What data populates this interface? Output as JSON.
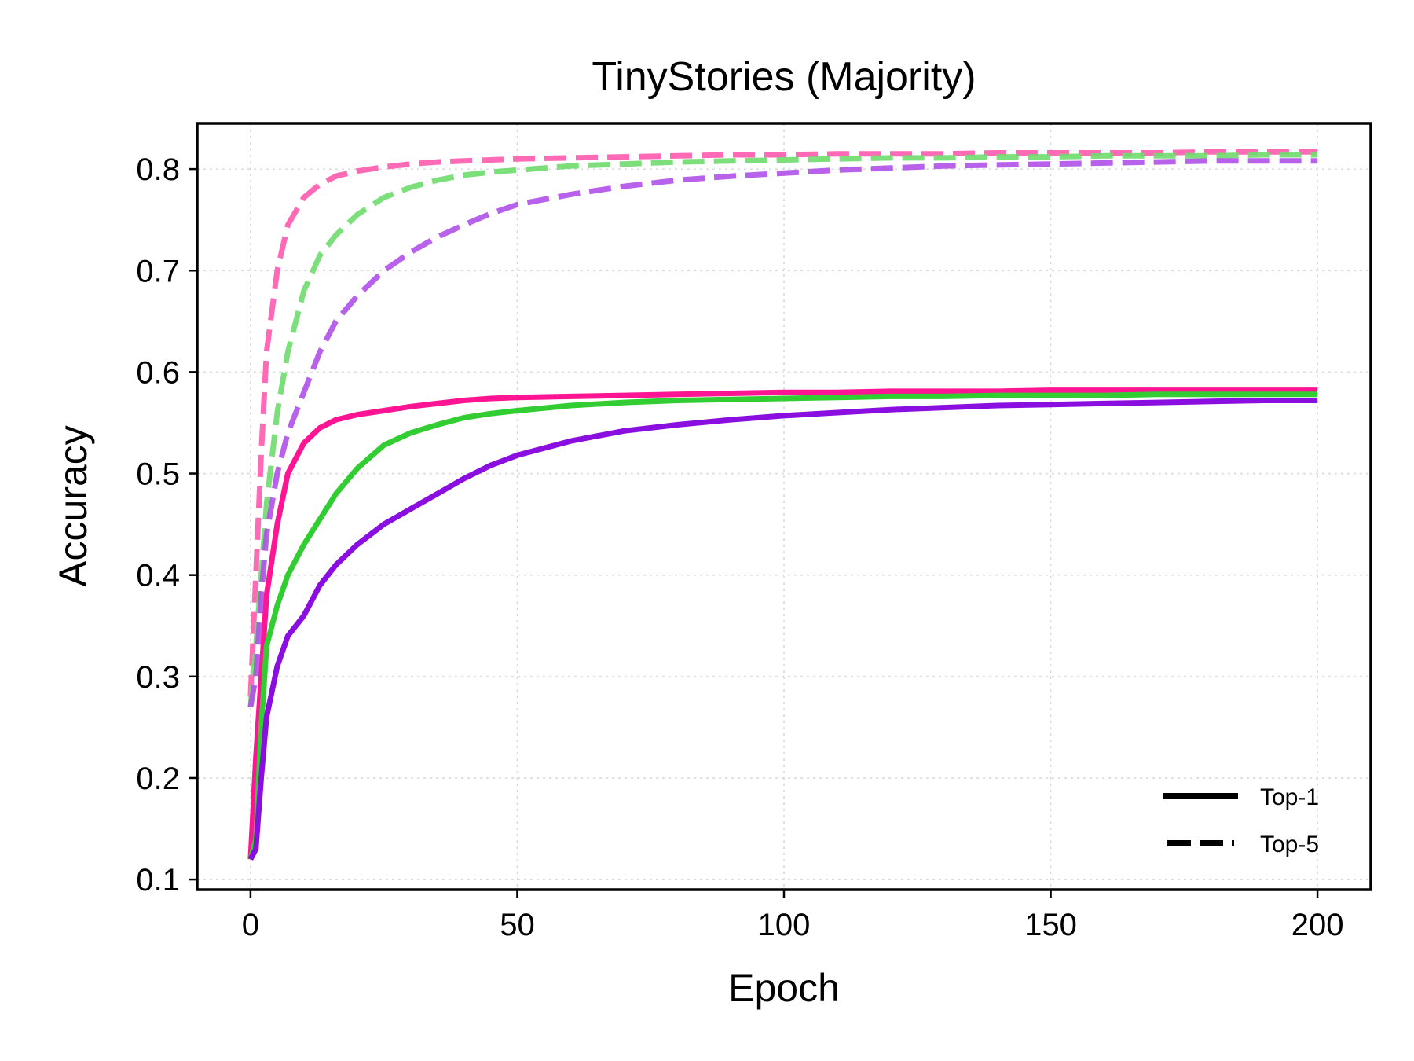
{
  "chart_data": {
    "type": "line",
    "title": "TinyStories (Majority)",
    "xlabel": "Epoch",
    "ylabel": "Accuracy",
    "xlim": [
      -10,
      210
    ],
    "ylim": [
      0.09,
      0.845
    ],
    "xticks": [
      0,
      50,
      100,
      150,
      200
    ],
    "xtick_labels": [
      "0",
      "50",
      "100",
      "150",
      "200"
    ],
    "yticks": [
      0.1,
      0.2,
      0.3,
      0.4,
      0.5,
      0.6,
      0.7,
      0.8
    ],
    "ytick_labels": [
      "0.1",
      "0.2",
      "0.3",
      "0.4",
      "0.5",
      "0.6",
      "0.7",
      "0.8"
    ],
    "grid": true,
    "legend": {
      "placement": "bottom-right",
      "entries": [
        {
          "label": "Top-1",
          "style": "solid"
        },
        {
          "label": "Top-5",
          "style": "dashed"
        }
      ]
    },
    "x": [
      0,
      1,
      2,
      3,
      5,
      7,
      10,
      13,
      16,
      20,
      25,
      30,
      35,
      40,
      45,
      50,
      60,
      70,
      80,
      90,
      100,
      110,
      120,
      130,
      140,
      150,
      160,
      170,
      180,
      190,
      200
    ],
    "series": [
      {
        "style": "solid",
        "color": "#ff1493",
        "values": [
          0.12,
          0.22,
          0.3,
          0.38,
          0.45,
          0.5,
          0.53,
          0.545,
          0.553,
          0.558,
          0.562,
          0.566,
          0.569,
          0.572,
          0.574,
          0.575,
          0.576,
          0.577,
          0.578,
          0.579,
          0.58,
          0.58,
          0.581,
          0.581,
          0.581,
          0.582,
          0.582,
          0.582,
          0.582,
          0.582,
          0.582
        ]
      },
      {
        "style": "solid",
        "color": "#32cd32",
        "values": [
          0.12,
          0.14,
          0.25,
          0.33,
          0.37,
          0.4,
          0.43,
          0.455,
          0.48,
          0.505,
          0.528,
          0.54,
          0.548,
          0.555,
          0.559,
          0.562,
          0.567,
          0.57,
          0.572,
          0.573,
          0.574,
          0.575,
          0.576,
          0.576,
          0.577,
          0.577,
          0.577,
          0.578,
          0.578,
          0.578,
          0.578
        ]
      },
      {
        "style": "solid",
        "color": "#8a0ee0",
        "values": [
          0.12,
          0.13,
          0.2,
          0.26,
          0.31,
          0.34,
          0.36,
          0.39,
          0.41,
          0.43,
          0.45,
          0.465,
          0.48,
          0.495,
          0.508,
          0.518,
          0.532,
          0.542,
          0.548,
          0.553,
          0.557,
          0.56,
          0.563,
          0.565,
          0.567,
          0.568,
          0.569,
          0.57,
          0.571,
          0.572,
          0.572
        ]
      },
      {
        "style": "dashed",
        "color": "#ff5aae",
        "values": [
          0.28,
          0.4,
          0.52,
          0.62,
          0.7,
          0.745,
          0.772,
          0.785,
          0.793,
          0.798,
          0.802,
          0.805,
          0.807,
          0.808,
          0.809,
          0.81,
          0.811,
          0.812,
          0.813,
          0.814,
          0.814,
          0.815,
          0.815,
          0.815,
          0.816,
          0.816,
          0.816,
          0.816,
          0.817,
          0.817,
          0.817
        ]
      },
      {
        "style": "dashed",
        "color": "#6edc6e",
        "values": [
          0.27,
          0.33,
          0.4,
          0.47,
          0.56,
          0.62,
          0.68,
          0.715,
          0.735,
          0.755,
          0.772,
          0.782,
          0.789,
          0.794,
          0.797,
          0.799,
          0.803,
          0.805,
          0.807,
          0.808,
          0.809,
          0.81,
          0.811,
          0.811,
          0.812,
          0.812,
          0.813,
          0.813,
          0.813,
          0.814,
          0.814
        ]
      },
      {
        "style": "dashed",
        "color": "#b050e8",
        "values": [
          0.27,
          0.3,
          0.38,
          0.44,
          0.5,
          0.54,
          0.58,
          0.62,
          0.65,
          0.675,
          0.7,
          0.718,
          0.733,
          0.745,
          0.756,
          0.765,
          0.775,
          0.783,
          0.789,
          0.793,
          0.796,
          0.799,
          0.801,
          0.803,
          0.804,
          0.805,
          0.806,
          0.807,
          0.808,
          0.808,
          0.808
        ]
      }
    ]
  }
}
